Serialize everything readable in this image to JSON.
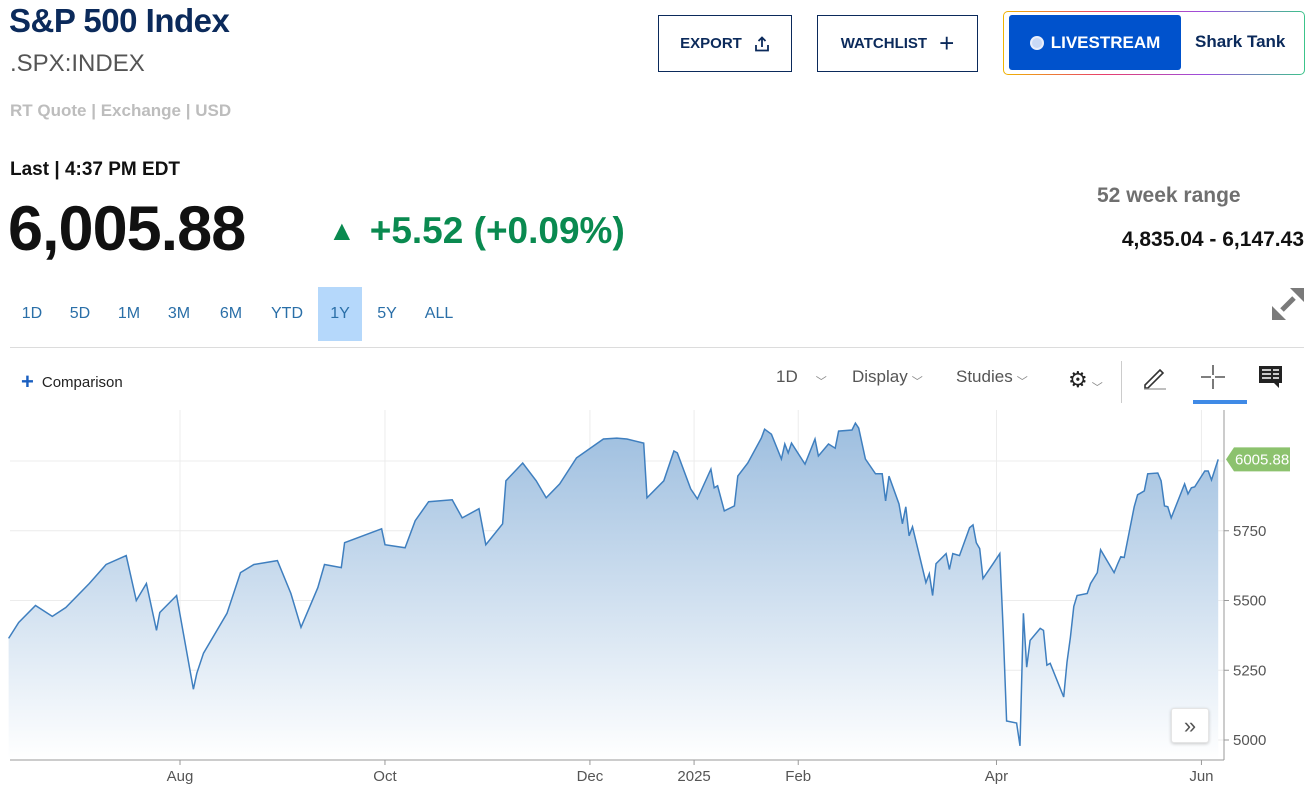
{
  "header": {
    "title": "S&P 500 Index",
    "symbol": ".SPX:INDEX",
    "quote_meta": "RT Quote | Exchange | USD",
    "export_label": "EXPORT",
    "watchlist_label": "WATCHLIST",
    "livestream_label": "LIVESTREAM",
    "show_label": "Shark Tank"
  },
  "quote": {
    "last_label": "Last | 4:37 PM EDT",
    "price": "6,005.88",
    "change": "+5.52 (+0.09%)",
    "direction": "up",
    "up_color": "#0a8a50",
    "range_label": "52 week range",
    "range_value": "4,835.04 - 6,147.43"
  },
  "range_tabs": [
    {
      "label": "1D"
    },
    {
      "label": "5D"
    },
    {
      "label": "1M"
    },
    {
      "label": "3M"
    },
    {
      "label": "6M"
    },
    {
      "label": "YTD"
    },
    {
      "label": "1Y",
      "active": true
    },
    {
      "label": "5Y"
    },
    {
      "label": "ALL"
    }
  ],
  "toolbar": {
    "comparison_label": "Comparison",
    "interval_label": "1D",
    "display_label": "Display",
    "studies_label": "Studies",
    "active_tool": "crosshair"
  },
  "chart_data": {
    "type": "area",
    "x_ticks": [
      {
        "date": "2024-08-01",
        "label": "Aug"
      },
      {
        "date": "2024-10-01",
        "label": "Oct"
      },
      {
        "date": "2024-12-01",
        "label": "Dec"
      },
      {
        "date": "2025-01-01",
        "label": "2025"
      },
      {
        "date": "2025-02-01",
        "label": "Feb"
      },
      {
        "date": "2025-04-01",
        "label": "Apr"
      },
      {
        "date": "2025-06-01",
        "label": "Jun"
      }
    ],
    "y_ticks": [
      5000,
      5250,
      5500,
      5750
    ],
    "ylim": [
      4880,
      6180
    ],
    "grid": true,
    "line_color": "#3f7fbf",
    "last_value_label": "6005.88",
    "last_value_color": "#8cc26e",
    "points": [
      [
        "2024-06-11",
        5364
      ],
      [
        "2024-06-14",
        5421
      ],
      [
        "2024-06-19",
        5482
      ],
      [
        "2024-06-24",
        5443
      ],
      [
        "2024-06-28",
        5475
      ],
      [
        "2024-07-05",
        5561
      ],
      [
        "2024-07-10",
        5629
      ],
      [
        "2024-07-16",
        5661
      ],
      [
        "2024-07-19",
        5500
      ],
      [
        "2024-07-22",
        5561
      ],
      [
        "2024-07-25",
        5393
      ],
      [
        "2024-07-26",
        5457
      ],
      [
        "2024-07-31",
        5518
      ],
      [
        "2024-08-05",
        5182
      ],
      [
        "2024-08-06",
        5239
      ],
      [
        "2024-08-08",
        5311
      ],
      [
        "2024-08-15",
        5454
      ],
      [
        "2024-08-19",
        5600
      ],
      [
        "2024-08-23",
        5629
      ],
      [
        "2024-08-30",
        5643
      ],
      [
        "2024-09-03",
        5525
      ],
      [
        "2024-09-06",
        5404
      ],
      [
        "2024-09-11",
        5546
      ],
      [
        "2024-09-13",
        5629
      ],
      [
        "2024-09-18",
        5618
      ],
      [
        "2024-09-19",
        5707
      ],
      [
        "2024-09-26",
        5739
      ],
      [
        "2024-09-30",
        5757
      ],
      [
        "2024-10-01",
        5700
      ],
      [
        "2024-10-07",
        5689
      ],
      [
        "2024-10-10",
        5786
      ],
      [
        "2024-10-14",
        5854
      ],
      [
        "2024-10-21",
        5861
      ],
      [
        "2024-10-24",
        5796
      ],
      [
        "2024-10-29",
        5829
      ],
      [
        "2024-10-31",
        5700
      ],
      [
        "2024-11-05",
        5775
      ],
      [
        "2024-11-06",
        5929
      ],
      [
        "2024-11-11",
        5993
      ],
      [
        "2024-11-15",
        5929
      ],
      [
        "2024-11-18",
        5868
      ],
      [
        "2024-11-22",
        5918
      ],
      [
        "2024-11-27",
        6011
      ],
      [
        "2024-12-05",
        6079
      ],
      [
        "2024-12-09",
        6082
      ],
      [
        "2024-12-12",
        6079
      ],
      [
        "2024-12-17",
        6064
      ],
      [
        "2024-12-18",
        5868
      ],
      [
        "2024-12-23",
        5929
      ],
      [
        "2024-12-26",
        6036
      ],
      [
        "2024-12-27",
        6029
      ],
      [
        "2024-12-31",
        5900
      ],
      [
        "2025-01-02",
        5864
      ],
      [
        "2025-01-06",
        5971
      ],
      [
        "2025-01-07",
        5904
      ],
      [
        "2025-01-08",
        5911
      ],
      [
        "2025-01-10",
        5821
      ],
      [
        "2025-01-13",
        5839
      ],
      [
        "2025-01-14",
        5946
      ],
      [
        "2025-01-17",
        5993
      ],
      [
        "2025-01-21",
        6082
      ],
      [
        "2025-01-22",
        6114
      ],
      [
        "2025-01-24",
        6096
      ],
      [
        "2025-01-27",
        6007
      ],
      [
        "2025-01-28",
        6061
      ],
      [
        "2025-01-29",
        6029
      ],
      [
        "2025-01-30",
        6064
      ],
      [
        "2025-02-03",
        5989
      ],
      [
        "2025-02-06",
        6079
      ],
      [
        "2025-02-07",
        6018
      ],
      [
        "2025-02-10",
        6061
      ],
      [
        "2025-02-12",
        6046
      ],
      [
        "2025-02-13",
        6107
      ],
      [
        "2025-02-17",
        6111
      ],
      [
        "2025-02-18",
        6136
      ],
      [
        "2025-02-19",
        6118
      ],
      [
        "2025-02-21",
        6007
      ],
      [
        "2025-02-24",
        5954
      ],
      [
        "2025-02-26",
        5954
      ],
      [
        "2025-02-27",
        5857
      ],
      [
        "2025-02-28",
        5946
      ],
      [
        "2025-03-03",
        5846
      ],
      [
        "2025-03-04",
        5775
      ],
      [
        "2025-03-05",
        5836
      ],
      [
        "2025-03-06",
        5732
      ],
      [
        "2025-03-07",
        5764
      ],
      [
        "2025-03-10",
        5614
      ],
      [
        "2025-03-11",
        5564
      ],
      [
        "2025-03-12",
        5596
      ],
      [
        "2025-03-13",
        5518
      ],
      [
        "2025-03-14",
        5632
      ],
      [
        "2025-03-17",
        5668
      ],
      [
        "2025-03-18",
        5611
      ],
      [
        "2025-03-19",
        5668
      ],
      [
        "2025-03-21",
        5661
      ],
      [
        "2025-03-24",
        5761
      ],
      [
        "2025-03-25",
        5771
      ],
      [
        "2025-03-26",
        5707
      ],
      [
        "2025-03-27",
        5686
      ],
      [
        "2025-03-28",
        5579
      ],
      [
        "2025-03-31",
        5632
      ],
      [
        "2025-04-02",
        5668
      ],
      [
        "2025-04-03",
        5393
      ],
      [
        "2025-04-04",
        5068
      ],
      [
        "2025-04-07",
        5061
      ],
      [
        "2025-04-08",
        4979
      ],
      [
        "2025-04-09",
        5454
      ],
      [
        "2025-04-10",
        5261
      ],
      [
        "2025-04-11",
        5357
      ],
      [
        "2025-04-14",
        5400
      ],
      [
        "2025-04-15",
        5393
      ],
      [
        "2025-04-16",
        5268
      ],
      [
        "2025-04-17",
        5275
      ],
      [
        "2025-04-21",
        5154
      ],
      [
        "2025-04-22",
        5279
      ],
      [
        "2025-04-23",
        5368
      ],
      [
        "2025-04-24",
        5479
      ],
      [
        "2025-04-25",
        5518
      ],
      [
        "2025-04-28",
        5525
      ],
      [
        "2025-04-29",
        5561
      ],
      [
        "2025-05-01",
        5600
      ],
      [
        "2025-05-02",
        5682
      ],
      [
        "2025-05-06",
        5600
      ],
      [
        "2025-05-07",
        5629
      ],
      [
        "2025-05-08",
        5657
      ],
      [
        "2025-05-09",
        5654
      ],
      [
        "2025-05-12",
        5836
      ],
      [
        "2025-05-13",
        5879
      ],
      [
        "2025-05-15",
        5893
      ],
      [
        "2025-05-16",
        5954
      ],
      [
        "2025-05-19",
        5957
      ],
      [
        "2025-05-20",
        5929
      ],
      [
        "2025-05-21",
        5839
      ],
      [
        "2025-05-22",
        5836
      ],
      [
        "2025-05-23",
        5796
      ],
      [
        "2025-05-27",
        5918
      ],
      [
        "2025-05-28",
        5882
      ],
      [
        "2025-05-29",
        5904
      ],
      [
        "2025-05-30",
        5907
      ],
      [
        "2025-06-02",
        5964
      ],
      [
        "2025-06-03",
        5964
      ],
      [
        "2025-06-04",
        5932
      ],
      [
        "2025-06-06",
        6005.88
      ]
    ]
  }
}
